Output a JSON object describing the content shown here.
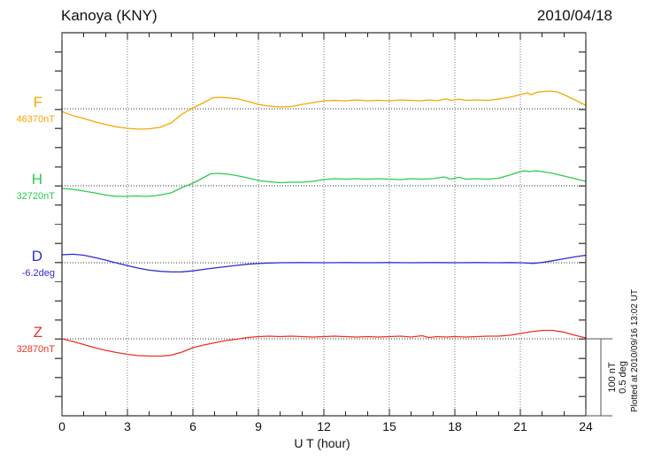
{
  "chart_data": {
    "type": "line",
    "title": "Kanoya (KNY)",
    "date": "2010/04/18",
    "xlabel": "U T (hour)",
    "x_range": [
      0,
      24
    ],
    "x_ticks": [
      "0",
      "3",
      "6",
      "9",
      "12",
      "15",
      "18",
      "21",
      "24"
    ],
    "x_minor_step_hours": 1,
    "grid_hours": [
      3,
      6,
      9,
      12,
      15,
      18,
      21
    ],
    "grid": "dotted-vertical-and-reference-lines",
    "legend_position": "left-of-axis",
    "scale_bar": {
      "line1": "100 nT",
      "line2": "0.5 deg"
    },
    "footnote": "Plotted at 2010/09/16 13:02 UT",
    "series": [
      {
        "name": "F",
        "reference": "46370nT",
        "reference_value": 46370,
        "unit": "nT",
        "color": "#f5a800",
        "points": [
          [
            0,
            -3.4
          ],
          [
            0.5,
            -9
          ],
          [
            1,
            -12.5
          ],
          [
            1.5,
            -17
          ],
          [
            2,
            -20.5
          ],
          [
            2.5,
            -23.5
          ],
          [
            3,
            -25.3
          ],
          [
            3.5,
            -26.4
          ],
          [
            4,
            -26
          ],
          [
            4.5,
            -24
          ],
          [
            5,
            -18.4
          ],
          [
            5.5,
            -6.9
          ],
          [
            6,
            1.1
          ],
          [
            6.5,
            8
          ],
          [
            6.9,
            14.3
          ],
          [
            7.2,
            14.9
          ],
          [
            7.6,
            14.3
          ],
          [
            8,
            13.2
          ],
          [
            8.5,
            9.8
          ],
          [
            9,
            5.7
          ],
          [
            9.5,
            3.4
          ],
          [
            10,
            2.3
          ],
          [
            10.5,
            2.9
          ],
          [
            11,
            5.7
          ],
          [
            11.5,
            8
          ],
          [
            12,
            10.3
          ],
          [
            12.5,
            10.9
          ],
          [
            13,
            10.3
          ],
          [
            13.5,
            11.5
          ],
          [
            14,
            10.3
          ],
          [
            14.5,
            11
          ],
          [
            15,
            10.3
          ],
          [
            15.5,
            11.5
          ],
          [
            16,
            10.9
          ],
          [
            16.4,
            10.3
          ],
          [
            16.8,
            11.5
          ],
          [
            17.2,
            10.5
          ],
          [
            17.6,
            13
          ],
          [
            17.8,
            10.9
          ],
          [
            18.2,
            12.5
          ],
          [
            18.5,
            10.9
          ],
          [
            19,
            11.5
          ],
          [
            19.5,
            10.9
          ],
          [
            20,
            12.6
          ],
          [
            20.5,
            14.9
          ],
          [
            21,
            18.4
          ],
          [
            21.3,
            20.7
          ],
          [
            21.5,
            18.4
          ],
          [
            21.8,
            21.8
          ],
          [
            22.1,
            22.4
          ],
          [
            22.4,
            23
          ],
          [
            22.7,
            21.8
          ],
          [
            23,
            18.4
          ],
          [
            23.5,
            11.5
          ],
          [
            24,
            4.6
          ]
        ]
      },
      {
        "name": "H",
        "reference": "32720nT",
        "reference_value": 32720,
        "unit": "nT",
        "color": "#2ecc4e",
        "points": [
          [
            0,
            -3.4
          ],
          [
            0.5,
            -4.6
          ],
          [
            1,
            -6.9
          ],
          [
            1.5,
            -9.2
          ],
          [
            2,
            -12.1
          ],
          [
            2.5,
            -13.8
          ],
          [
            3,
            -13.8
          ],
          [
            3.4,
            -13.2
          ],
          [
            3.8,
            -13.8
          ],
          [
            4.2,
            -13.2
          ],
          [
            4.6,
            -11.5
          ],
          [
            5,
            -9.2
          ],
          [
            5.5,
            -2.3
          ],
          [
            6,
            3.4
          ],
          [
            6.4,
            9.2
          ],
          [
            6.8,
            15.5
          ],
          [
            7.2,
            16.1
          ],
          [
            7.6,
            15
          ],
          [
            8,
            13.2
          ],
          [
            8.5,
            10.3
          ],
          [
            9,
            6.9
          ],
          [
            9.5,
            5.2
          ],
          [
            10,
            4
          ],
          [
            10.5,
            4.6
          ],
          [
            11,
            4.6
          ],
          [
            11.5,
            5.7
          ],
          [
            12,
            8
          ],
          [
            12.5,
            9.2
          ],
          [
            13,
            8.6
          ],
          [
            13.5,
            9.2
          ],
          [
            14,
            8.6
          ],
          [
            14.5,
            9.2
          ],
          [
            15,
            8.6
          ],
          [
            15.5,
            8
          ],
          [
            16,
            9.2
          ],
          [
            16.5,
            8.6
          ],
          [
            17,
            9.2
          ],
          [
            17.5,
            11.5
          ],
          [
            17.8,
            8.6
          ],
          [
            18.2,
            11
          ],
          [
            18.5,
            8.6
          ],
          [
            19,
            9.2
          ],
          [
            19.5,
            8.6
          ],
          [
            20,
            9.8
          ],
          [
            20.5,
            13.8
          ],
          [
            21,
            18.4
          ],
          [
            21.2,
            19.5
          ],
          [
            21.4,
            18.4
          ],
          [
            21.7,
            19.5
          ],
          [
            22,
            18.4
          ],
          [
            22.5,
            16.1
          ],
          [
            23,
            12.6
          ],
          [
            23.5,
            9.2
          ],
          [
            24,
            5.7
          ]
        ]
      },
      {
        "name": "D",
        "reference": "-6.2deg",
        "reference_value": -6.2,
        "unit": "deg",
        "color": "#2d2dd2",
        "points": [
          [
            0,
            0.052
          ],
          [
            0.5,
            0.055
          ],
          [
            1,
            0.049
          ],
          [
            1.5,
            0.034
          ],
          [
            2,
            0.017
          ],
          [
            2.3,
            0.006
          ],
          [
            2.6,
            -0.005
          ],
          [
            3,
            -0.019
          ],
          [
            3.5,
            -0.035
          ],
          [
            4,
            -0.048
          ],
          [
            4.5,
            -0.056
          ],
          [
            5,
            -0.06
          ],
          [
            5.5,
            -0.059
          ],
          [
            6,
            -0.053
          ],
          [
            6.5,
            -0.043
          ],
          [
            7,
            -0.034
          ],
          [
            7.5,
            -0.026
          ],
          [
            8,
            -0.017
          ],
          [
            8.5,
            -0.01
          ],
          [
            9,
            -0.005
          ],
          [
            9.5,
            -0.002
          ],
          [
            10,
            0
          ],
          [
            11,
            0.001
          ],
          [
            12,
            0
          ],
          [
            13,
            0.001
          ],
          [
            14,
            0
          ],
          [
            15,
            0.001
          ],
          [
            16,
            0
          ],
          [
            17,
            0.001
          ],
          [
            18,
            0
          ],
          [
            19,
            0.001
          ],
          [
            20,
            0
          ],
          [
            20.5,
            0.001
          ],
          [
            21,
            0
          ],
          [
            21.6,
            -0.004
          ],
          [
            22,
            0.002
          ],
          [
            22.5,
            0.013
          ],
          [
            23,
            0.026
          ],
          [
            23.5,
            0.038
          ],
          [
            24,
            0.049
          ]
        ]
      },
      {
        "name": "Z",
        "reference": "32870nT",
        "reference_value": 32870,
        "unit": "nT",
        "color": "#ee3224",
        "points": [
          [
            0,
            0
          ],
          [
            0.5,
            -3.4
          ],
          [
            1,
            -7.5
          ],
          [
            1.5,
            -11.5
          ],
          [
            2,
            -14.9
          ],
          [
            2.5,
            -17.8
          ],
          [
            3,
            -20.1
          ],
          [
            3.5,
            -21.8
          ],
          [
            4,
            -22.4
          ],
          [
            4.6,
            -22.4
          ],
          [
            5,
            -21.3
          ],
          [
            5.5,
            -17.2
          ],
          [
            6,
            -11.5
          ],
          [
            6.5,
            -8
          ],
          [
            7,
            -5.2
          ],
          [
            7.5,
            -2.3
          ],
          [
            8,
            -0.6
          ],
          [
            8.5,
            1.7
          ],
          [
            9,
            2.9
          ],
          [
            9.5,
            3.4
          ],
          [
            10,
            2.9
          ],
          [
            10.5,
            3.4
          ],
          [
            11,
            2.9
          ],
          [
            11.5,
            2.3
          ],
          [
            12,
            2.9
          ],
          [
            12.5,
            3.4
          ],
          [
            13,
            2.9
          ],
          [
            13.5,
            2.3
          ],
          [
            14,
            2.9
          ],
          [
            14.5,
            2.3
          ],
          [
            15,
            2.9
          ],
          [
            15.5,
            3.4
          ],
          [
            16,
            2.3
          ],
          [
            16.5,
            4
          ],
          [
            16.8,
            1.7
          ],
          [
            17.2,
            2.9
          ],
          [
            17.6,
            2.3
          ],
          [
            18,
            2.9
          ],
          [
            18.5,
            2.3
          ],
          [
            19,
            2.9
          ],
          [
            19.5,
            3.4
          ],
          [
            20,
            3.4
          ],
          [
            20.5,
            4.6
          ],
          [
            21,
            6.9
          ],
          [
            21.5,
            9.2
          ],
          [
            22,
            10.9
          ],
          [
            22.5,
            10.9
          ],
          [
            23,
            8.6
          ],
          [
            23.5,
            4.6
          ],
          [
            24,
            1.1
          ]
        ]
      }
    ]
  }
}
